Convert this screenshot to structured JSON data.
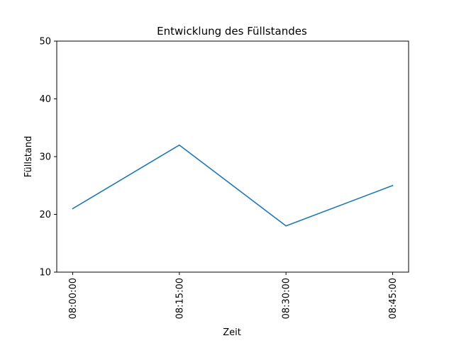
{
  "chart_data": {
    "type": "line",
    "title": "Entwicklung des Füllstandes",
    "xlabel": "Zeit",
    "ylabel": "Füllstand",
    "categories": [
      "08:00:00",
      "08:15:00",
      "08:30:00",
      "08:45:00"
    ],
    "series": [
      {
        "values": [
          21,
          32,
          18,
          25
        ],
        "color": "#1f77b4"
      }
    ],
    "ylim": [
      10,
      50
    ],
    "yticks": [
      10,
      20,
      30,
      40,
      50
    ],
    "grid": false,
    "legend": "none"
  }
}
